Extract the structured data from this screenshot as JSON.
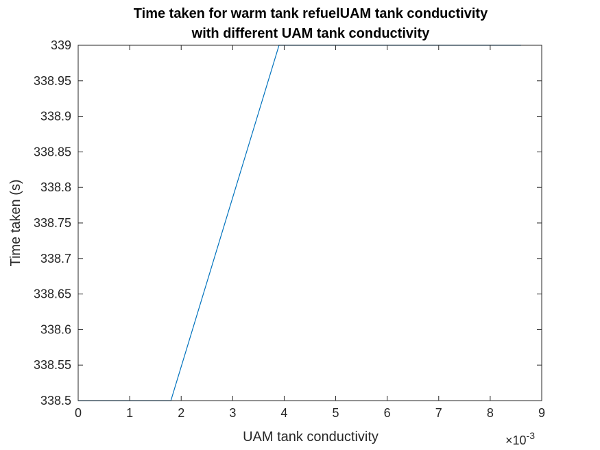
{
  "chart_data": {
    "type": "line",
    "title": [
      "Time taken for warm tank refuelUAM tank conductivity",
      "with different UAM tank conductivity"
    ],
    "xlabel": "UAM tank conductivity",
    "ylabel": "Time taken (s)",
    "x_multiplier": {
      "base": "×10",
      "exponent": "-3"
    },
    "xlim": [
      0,
      9
    ],
    "ylim": [
      338.5,
      339
    ],
    "x_ticks": [
      0,
      1,
      2,
      3,
      4,
      5,
      6,
      7,
      8,
      9
    ],
    "x_tick_labels": [
      "0",
      "1",
      "2",
      "3",
      "4",
      "5",
      "6",
      "7",
      "8",
      "9"
    ],
    "y_ticks": [
      338.5,
      338.55,
      338.6,
      338.65,
      338.7,
      338.75,
      338.8,
      338.85,
      338.9,
      338.95,
      339
    ],
    "y_tick_labels": [
      "338.5",
      "338.55",
      "338.6",
      "338.65",
      "338.7",
      "338.75",
      "338.8",
      "338.85",
      "338.9",
      "338.95",
      "339"
    ],
    "grid": false,
    "series": [
      {
        "color": "#0072BD",
        "x": [
          0,
          1.8,
          3.9,
          8.6
        ],
        "y": [
          338.5,
          338.5,
          339,
          339
        ]
      }
    ]
  }
}
